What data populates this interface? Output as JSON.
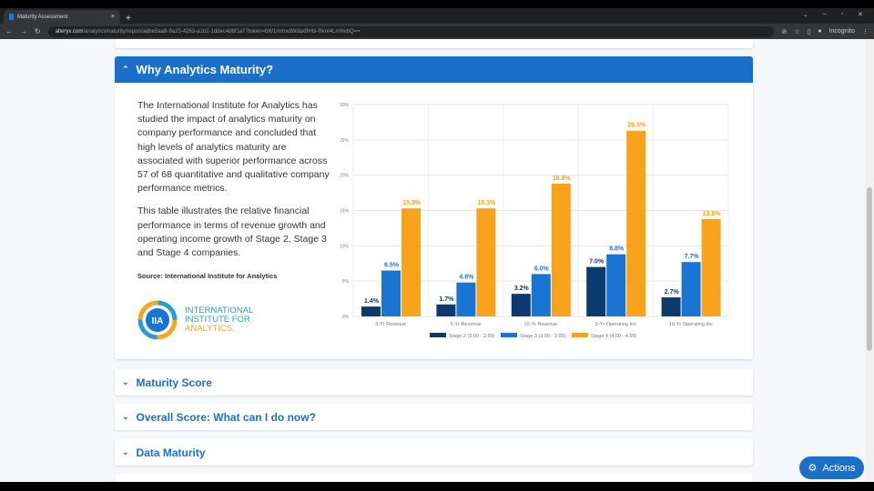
{
  "browser": {
    "tab_title": "Maturity Assessment",
    "url_domain": "alteryx.com",
    "url_path": "/analyticsmaturity/report/adbe5aa8-9a23-4263-a1b2-1ddec4d6f1a7?token=bW1mmxdWdaxfIHbi-RknI4LmNvbQ==",
    "profile": "Incognito"
  },
  "sections": {
    "why": {
      "title": "Why Analytics Maturity?",
      "para1": "The International Institute for Analytics has studied the impact of analytics maturity on company performance and concluded that high levels of analytics maturity are associated with superior performance across 57 of 68 quantitative and qualitative company performance metrics.",
      "para2": "This table illustrates the relative financial performance in terms of revenue growth and operating income growth of Stage 2, Stage 3 and Stage 4 companies.",
      "source": "Source: International Institute for Analytics",
      "logo_text": "INTERNATIONAL INSTITUTE FOR ANALYTICS"
    },
    "maturity_score": "Maturity Score",
    "overall": "Overall Score: What can I do now?",
    "data_maturity": "Data Maturity"
  },
  "actions_label": "Actions",
  "chart_data": {
    "type": "bar",
    "categories": [
      "3-Yr Revenue",
      "5-Yr Revenue",
      "10-Yr Revenue",
      "5-Yr Operating Inc",
      "10-Yr Operating Inc"
    ],
    "series": [
      {
        "name": "Stage 2 (2.00 - 2.99)",
        "color": "#0d3a6e",
        "values": [
          1.4,
          1.7,
          3.2,
          7.0,
          2.7
        ]
      },
      {
        "name": "Stage 3 (3.00 - 3.99)",
        "color": "#1a74d2",
        "values": [
          6.5,
          4.8,
          6.0,
          8.8,
          7.7
        ]
      },
      {
        "name": "Stage 4 (4.00 - 4.99)",
        "color": "#f9a21b",
        "values": [
          15.3,
          15.3,
          18.8,
          26.3,
          13.8
        ]
      }
    ],
    "yticks": [
      "0%",
      "5%",
      "10%",
      "15%",
      "20%",
      "25%",
      "30%"
    ],
    "ylim": [
      0,
      30
    ],
    "grid": true,
    "legend": "bottom"
  }
}
